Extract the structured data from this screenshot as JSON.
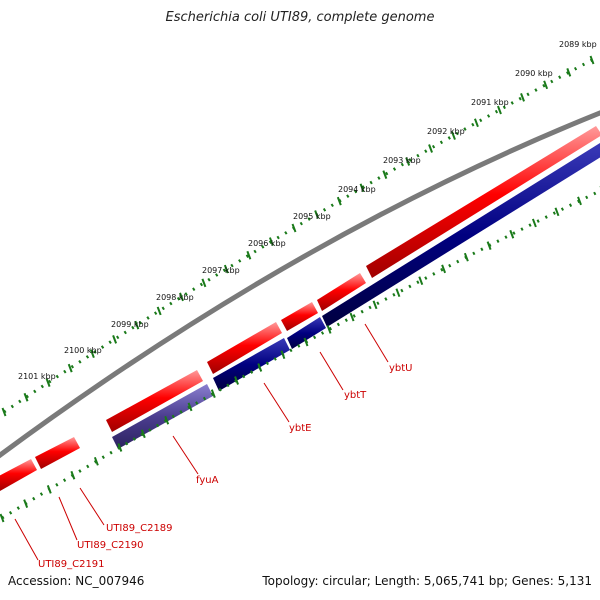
{
  "title": "Escherichia coli UTI89, complete genome",
  "footer": {
    "accession": "Accession: NC_007946",
    "summary": "Topology: circular; Length: 5,065,741 bp; Genes: 5,131"
  },
  "colors": {
    "backbone": "#7a7a7a",
    "forward_strand": "#ff0000",
    "reverse_strand": "#000080",
    "highlight_gene": "#4b3d8f",
    "ticks": "#1a7a1a",
    "gene_label": "#cc0000"
  },
  "kbp_scale": [
    "2089 kbp",
    "2090 kbp",
    "2091 kbp",
    "2092 kbp",
    "2093 kbp",
    "2094 kbp",
    "2095 kbp",
    "2096 kbp",
    "2097 kbp",
    "2098 kbp",
    "2099 kbp",
    "2100 kbp",
    "2101 kbp"
  ],
  "gene_labels": [
    "ybtU",
    "ybtT",
    "ybtE",
    "fyuA",
    "UTI89_C2189",
    "UTI89_C2190",
    "UTI89_C2191"
  ]
}
